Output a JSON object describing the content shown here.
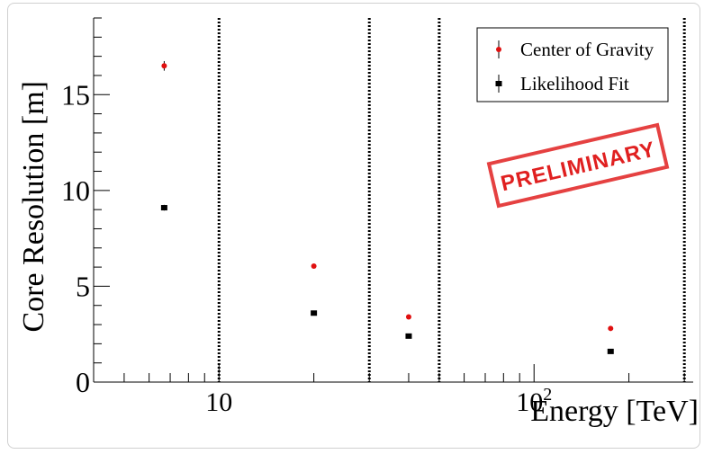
{
  "chart_data": {
    "type": "scatter",
    "xlabel": "Energy [TeV]",
    "ylabel": "Core Resolution [m]",
    "xscale": "log",
    "xlim": [
      4,
      320
    ],
    "ylim": [
      0,
      19
    ],
    "x_tick_labels": [
      {
        "value": 10,
        "label": "10",
        "sup": ""
      },
      {
        "value": 100,
        "label": "10",
        "sup": "2"
      }
    ],
    "y_ticks": [
      0,
      5,
      10,
      15
    ],
    "vertical_dashed_lines": [
      10,
      30,
      50,
      300
    ],
    "series": [
      {
        "name": "Center of Gravity",
        "color": "#e01010",
        "marker": "circle",
        "points": [
          {
            "x": 6.7,
            "y": 16.5,
            "err": 0.25
          },
          {
            "x": 20,
            "y": 6.05,
            "err": 0.1
          },
          {
            "x": 40,
            "y": 3.4,
            "err": 0.05
          },
          {
            "x": 175,
            "y": 2.8,
            "err": 0.05
          }
        ]
      },
      {
        "name": "Likelihood Fit",
        "color": "#000000",
        "marker": "square",
        "points": [
          {
            "x": 6.7,
            "y": 9.1,
            "err": 0.15
          },
          {
            "x": 20,
            "y": 3.6,
            "err": 0.05
          },
          {
            "x": 40,
            "y": 2.4,
            "err": 0.05
          },
          {
            "x": 175,
            "y": 1.6,
            "err": 0.05
          }
        ]
      }
    ],
    "legend_position": "top-right",
    "stamp": "PRELIMINARY",
    "stamp_color": "#e02020"
  }
}
